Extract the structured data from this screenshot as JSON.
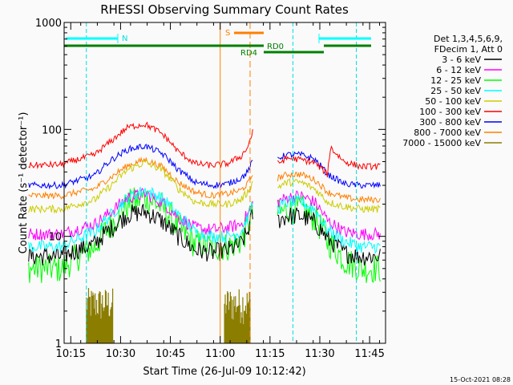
{
  "chart_data": {
    "type": "line",
    "title": "RHESSI Observing Summary Count Rates",
    "xlabel": "Start Time (26-Jul-09 10:12:42)",
    "ylabel": "Count Rate (s⁻¹ detector⁻¹)",
    "yscale": "log",
    "ylim": [
      1,
      1000
    ],
    "xlim_minutes": [
      10.7,
      107.5
    ],
    "x_ticks": [
      {
        "t": 12.7,
        "label": "10:15"
      },
      {
        "t": 27.7,
        "label": "10:30"
      },
      {
        "t": 42.7,
        "label": "10:45"
      },
      {
        "t": 57.7,
        "label": "11:00"
      },
      {
        "t": 72.7,
        "label": "11:15"
      },
      {
        "t": 87.7,
        "label": "11:30"
      },
      {
        "t": 102.7,
        "label": "11:45"
      }
    ],
    "y_ticks": [
      {
        "v": 1,
        "label": "1"
      },
      {
        "v": 10,
        "label": "10"
      },
      {
        "v": 100,
        "label": "100"
      },
      {
        "v": 1000,
        "label": "1000"
      }
    ],
    "legend_header": [
      "Det 1,3,4,5,6,9,",
      "FDecim 1, Att 0"
    ],
    "legend_position": "right",
    "series": [
      {
        "name": "3 - 6 keV",
        "color": "#000000",
        "x": [
          0,
          10,
          20,
          25,
          30,
          35,
          40,
          45,
          50,
          55,
          60,
          64,
          66,
          67.5,
          75,
          78,
          82,
          86,
          90,
          95,
          100,
          106
        ],
        "y": [
          6.5,
          6.5,
          8.5,
          12,
          16,
          17,
          14,
          10,
          7.5,
          7,
          7.4,
          8.5,
          11,
          16,
          14,
          15.5,
          15.5,
          13.5,
          9.5,
          7,
          6.5,
          6.5
        ]
      },
      {
        "name": "6 - 12 keV",
        "color": "#ff00ff",
        "x": [
          0,
          10,
          20,
          25,
          30,
          35,
          40,
          45,
          50,
          55,
          60,
          64,
          66,
          67.5,
          75,
          78,
          82,
          86,
          90,
          95,
          100,
          106
        ],
        "y": [
          10.5,
          10.5,
          13,
          17,
          23,
          25,
          21,
          15,
          12,
          11.5,
          12,
          13,
          16,
          20,
          21,
          23,
          24,
          21,
          14,
          11,
          10.5,
          10.5
        ]
      },
      {
        "name": "12 - 25 keV",
        "color": "#00ff00",
        "x": [
          0,
          10,
          20,
          25,
          30,
          35,
          40,
          45,
          50,
          55,
          60,
          64,
          66,
          67.5,
          75,
          78,
          82,
          86,
          90,
          95,
          100,
          106
        ],
        "y": [
          5,
          5,
          8,
          13,
          20,
          23,
          19,
          12,
          8.5,
          8,
          8,
          9,
          12,
          17,
          16,
          18,
          18,
          15,
          9,
          6,
          5,
          5
        ]
      },
      {
        "name": "25 - 50 keV",
        "color": "#00ffff",
        "x": [
          0,
          10,
          20,
          25,
          30,
          35,
          40,
          45,
          50,
          55,
          60,
          64,
          66,
          67.5,
          75,
          78,
          82,
          86,
          90,
          95,
          100,
          106
        ],
        "y": [
          8,
          8,
          11,
          16,
          23,
          27,
          23,
          16,
          11,
          10,
          10,
          11,
          15,
          20,
          18,
          21,
          21,
          18,
          11.5,
          9,
          8,
          8
        ]
      },
      {
        "name": "50 - 100 keV",
        "color": "#cccc00",
        "x": [
          0,
          10,
          20,
          25,
          30,
          35,
          40,
          45,
          50,
          55,
          60,
          64,
          66,
          67.5,
          75,
          78,
          82,
          86,
          90,
          95,
          100,
          106
        ],
        "y": [
          18,
          18,
          22,
          30,
          42,
          49,
          42,
          28,
          21,
          20,
          20,
          22,
          26,
          32,
          29,
          32,
          32,
          28,
          21,
          19,
          18,
          18
        ]
      },
      {
        "name": "100 - 300 keV",
        "color": "#ff0000",
        "x": [
          0,
          10,
          20,
          25,
          30,
          35,
          40,
          45,
          50,
          55,
          60,
          64,
          66,
          67.5,
          75,
          78,
          82,
          86,
          90,
          91,
          92,
          95,
          100,
          106
        ],
        "y": [
          46,
          47,
          58,
          78,
          105,
          112,
          92,
          62,
          48,
          46,
          48,
          56,
          68,
          95,
          48,
          54,
          52,
          49,
          38,
          68,
          62,
          50,
          45,
          45
        ]
      },
      {
        "name": "300 - 800 keV",
        "color": "#0000ff",
        "x": [
          0,
          10,
          20,
          25,
          30,
          35,
          40,
          45,
          50,
          55,
          60,
          64,
          66,
          67.5,
          75,
          78,
          82,
          86,
          90,
          95,
          100,
          106
        ],
        "y": [
          30,
          30,
          37,
          52,
          65,
          70,
          60,
          42,
          32,
          30,
          31,
          35,
          40,
          50,
          54,
          58,
          58,
          53,
          38,
          31,
          30,
          30
        ]
      },
      {
        "name": "800 - 7000 keV",
        "color": "#ff8000",
        "x": [
          0,
          10,
          20,
          25,
          30,
          35,
          40,
          45,
          50,
          55,
          60,
          64,
          66,
          67.5,
          75,
          78,
          82,
          86,
          90,
          95,
          100,
          106
        ],
        "y": [
          24,
          24,
          28,
          36,
          46,
          52,
          45,
          32,
          26,
          24,
          25,
          27,
          31,
          38,
          35,
          38,
          38,
          34,
          26,
          23,
          22,
          22
        ]
      },
      {
        "name": "7000 - 15000 keV",
        "color": "#8b7d00",
        "x": [],
        "y": []
      }
    ],
    "spikes_7000_15000": [
      [
        17.4,
        25.4
      ],
      [
        59.0,
        66.7
      ]
    ],
    "bar_labels": {
      "n": "N",
      "s": "S",
      "rd4": "RD4",
      "rd0": "RD0"
    },
    "cyan_lines_min": [
      17.4,
      79.6,
      98.7
    ],
    "orange_lines_min": [
      57.7,
      66.7
    ],
    "timestamp": "15-Oct-2021 08:28"
  }
}
